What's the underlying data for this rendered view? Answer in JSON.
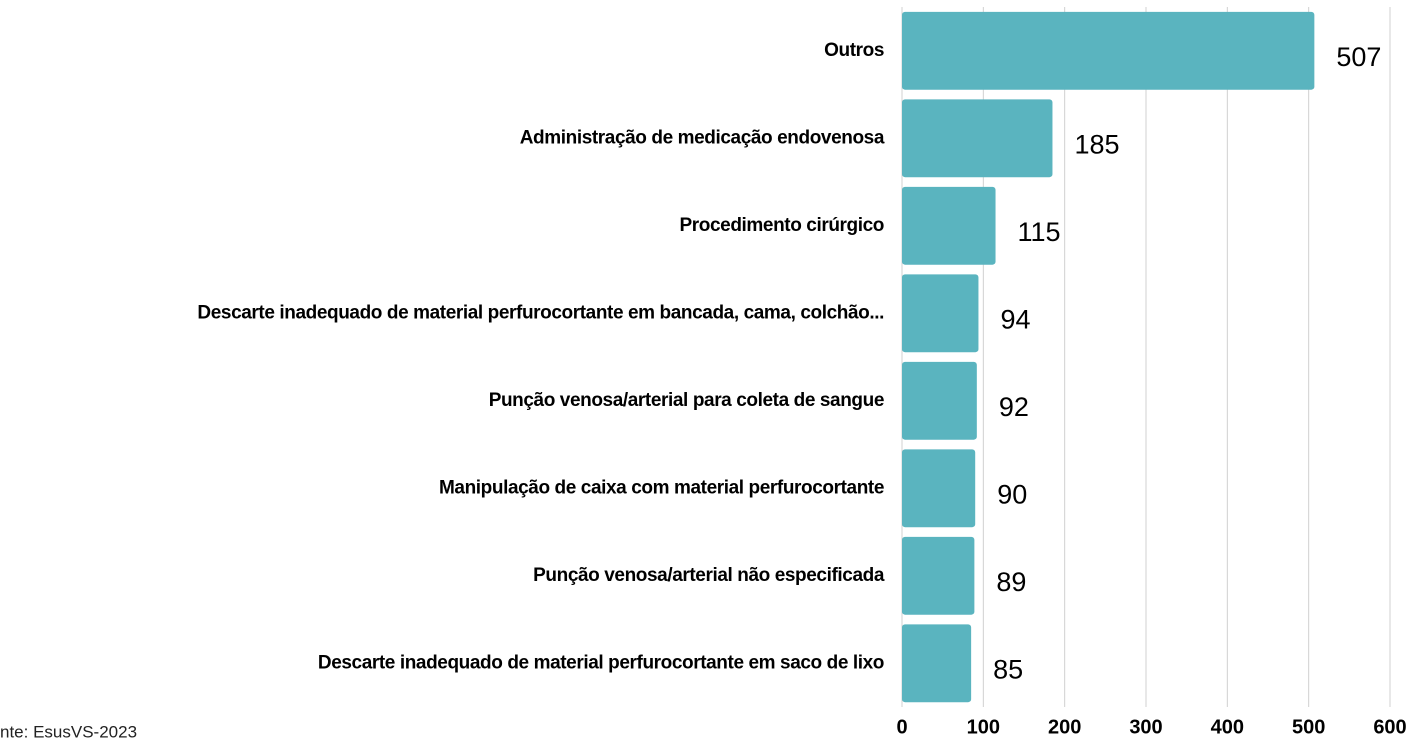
{
  "chart_data": {
    "type": "bar",
    "orientation": "horizontal",
    "categories": [
      "Outros",
      "Administração de medicação endovenosa",
      "Procedimento cirúrgico",
      "Descarte inadequado de material perfurocortante em bancada, cama, colchão...",
      "Punção venosa/arterial para coleta de sangue",
      "Manipulação de caixa com material perfurocortante",
      "Punção venosa/arterial não especificada",
      "Descarte inadequado de material perfurocortante em saco de lixo"
    ],
    "values": [
      507,
      185,
      115,
      94,
      92,
      90,
      89,
      85
    ],
    "color": "#5ab4bf",
    "xlim": [
      0,
      600
    ],
    "xticks": [
      0,
      100,
      200,
      300,
      400,
      500,
      600
    ],
    "grid": true,
    "source": "nte: EsusVS-2023"
  }
}
